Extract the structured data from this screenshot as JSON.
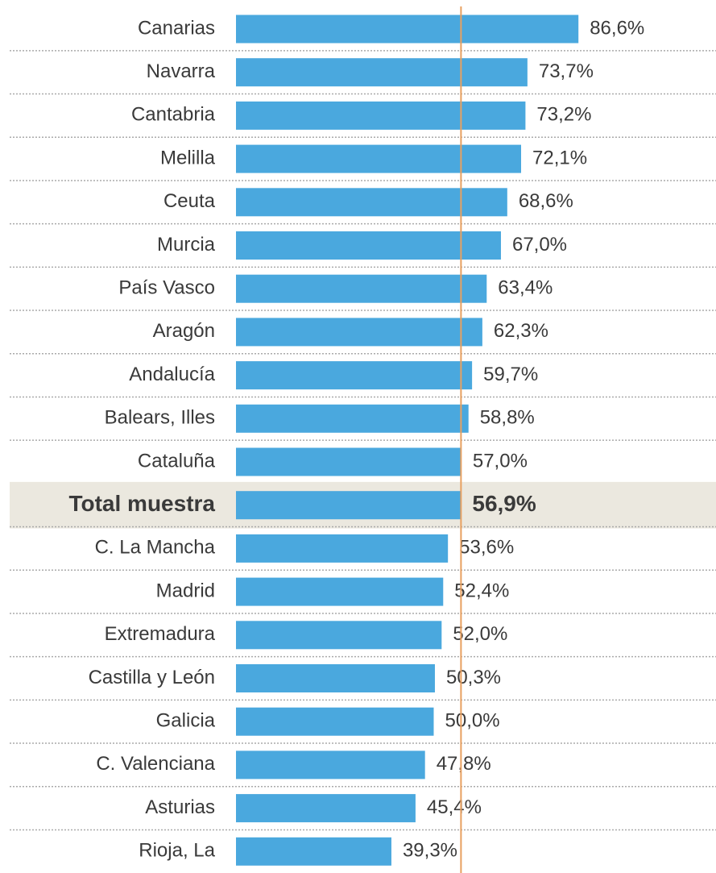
{
  "chart_data": {
    "type": "bar",
    "orientation": "horizontal",
    "categories": [
      "Canarias",
      "Navarra",
      "Cantabria",
      "Melilla",
      "Ceuta",
      "Murcia",
      "País Vasco",
      "Aragón",
      "Andalucía",
      "Balears, Illes",
      "Cataluña",
      "Total muestra",
      "C. La Mancha",
      "Madrid",
      "Extremadura",
      "Castilla y León",
      "Galicia",
      "C. Valenciana",
      "Asturias",
      "Rioja, La"
    ],
    "values": [
      86.6,
      73.7,
      73.2,
      72.1,
      68.6,
      67.0,
      63.4,
      62.3,
      59.7,
      58.8,
      57.0,
      56.9,
      53.6,
      52.4,
      52.0,
      50.3,
      50.0,
      47.8,
      45.4,
      39.3
    ],
    "value_labels": [
      "86,6%",
      "73,7%",
      "73,2%",
      "72,1%",
      "68,6%",
      "67,0%",
      "63,4%",
      "62,3%",
      "59,7%",
      "58,8%",
      "57,0%",
      "56,9%",
      "53,6%",
      "52,4%",
      "52,0%",
      "50,3%",
      "50,0%",
      "47,8%",
      "45,4%",
      "39,3%"
    ],
    "color": "#4aa8de",
    "highlight": "Total muestra",
    "highlight_color": "#ebe8df",
    "reference_color": "#e8a060",
    "xlim": [
      0,
      100
    ]
  }
}
